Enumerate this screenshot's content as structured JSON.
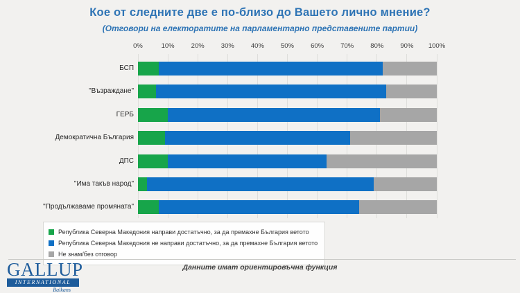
{
  "title": "Кое от следните две е по-близо до Вашето лично мнение?",
  "subtitle": "(Отговори на електоратите на парламентарно представените партии)",
  "chart_data": {
    "type": "bar",
    "orientation": "horizontal",
    "stacked": true,
    "unit": "percent",
    "categories": [
      "БСП",
      "\"Възраждане\"",
      "ГЕРБ",
      "Демократична България",
      "ДПС",
      "\"Има такъв народ\"",
      "\"Продължаваме промяната\""
    ],
    "series": [
      {
        "key": "done-enough",
        "name": "Република Северна Македония направи достатъчно, за да премахне България ветото",
        "color": "#17A54A",
        "values": [
          7,
          6,
          10,
          9,
          10,
          3,
          7
        ]
      },
      {
        "key": "not-done-enough",
        "name": "Република Северна Македония не направи достатъчно, за да премахне България ветото",
        "color": "#0F70C5",
        "values": [
          75,
          77,
          71,
          62,
          53,
          76,
          67
        ]
      },
      {
        "key": "dont-know",
        "name": "Не знам/без отговор",
        "color": "#A6A6A6",
        "values": [
          18,
          17,
          19,
          29,
          37,
          21,
          26
        ]
      }
    ],
    "x_axis": {
      "min": 0,
      "max": 100,
      "ticks": [
        "0%",
        "10%",
        "20%",
        "30%",
        "40%",
        "50%",
        "60%",
        "70%",
        "80%",
        "90%",
        "100%"
      ]
    },
    "grid": true,
    "legend_position": "bottom-left"
  },
  "footer": {
    "note": "Данните имат ориентировъчна функция",
    "logo": {
      "line1": "GALLUP",
      "line2": "INTERNATIONAL",
      "line3": "Balkans"
    }
  },
  "colors": {
    "title": "#2E74B5",
    "series_green": "#17A54A",
    "series_blue": "#0F70C5",
    "series_gray": "#A6A6A6",
    "logo_blue": "#1E5C9B",
    "background": "#F2F1EF"
  }
}
